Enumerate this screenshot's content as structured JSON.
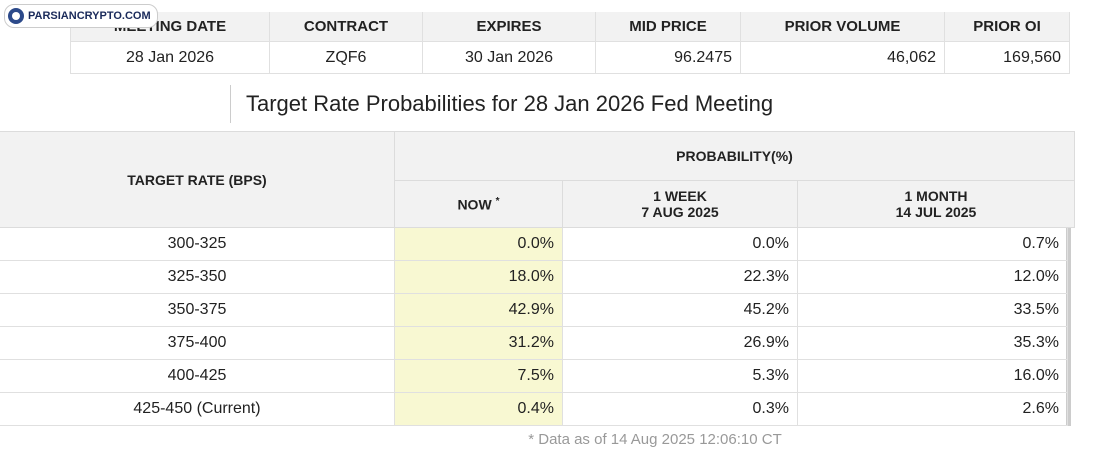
{
  "watermark": "PARSIANCRYPTO.COM",
  "meeting_table": {
    "headers": [
      "MEETING DATE",
      "CONTRACT",
      "EXPIRES",
      "MID PRICE",
      "PRIOR VOLUME",
      "PRIOR OI"
    ],
    "rows": [
      [
        "28 Jan 2026",
        "ZQF6",
        "30 Jan 2026",
        "96.2475",
        "46,062",
        "169,560"
      ]
    ]
  },
  "title": "Target Rate Probabilities for 28 Jan 2026 Fed Meeting",
  "probability_table": {
    "row_header": "TARGET RATE (BPS)",
    "group_header": "PROBABILITY(%)",
    "columns": [
      {
        "label": "NOW",
        "note": "*"
      },
      {
        "label": "1 WEEK",
        "date": "7 AUG 2025"
      },
      {
        "label": "1 MONTH",
        "date": "14 JUL 2025"
      }
    ],
    "rows": [
      [
        "300-325",
        "0.0%",
        "0.0%",
        "0.7%"
      ],
      [
        "325-350",
        "18.0%",
        "22.3%",
        "12.0%"
      ],
      [
        "350-375",
        "42.9%",
        "45.2%",
        "33.5%"
      ],
      [
        "375-400",
        "31.2%",
        "26.9%",
        "35.3%"
      ],
      [
        "400-425",
        "7.5%",
        "5.3%",
        "16.0%"
      ],
      [
        "425-450 (Current)",
        "0.4%",
        "0.3%",
        "2.6%"
      ]
    ]
  },
  "footnote": "* Data as of 14 Aug 2025 12:06:10 CT"
}
